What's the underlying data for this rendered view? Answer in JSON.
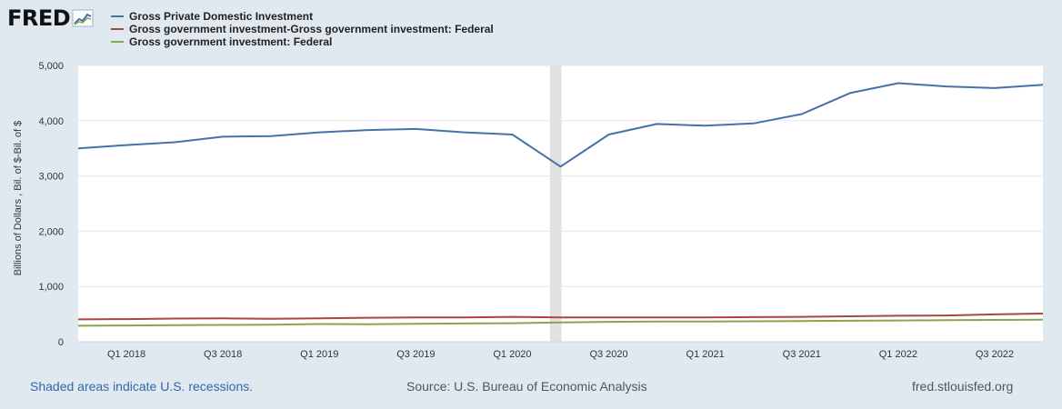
{
  "logo": {
    "text": "FRED"
  },
  "colors": {
    "background": "#e1e9f0",
    "plot": "#ffffff",
    "recession": "#e1e1e1"
  },
  "footer": {
    "recession_note": "Shaded areas indicate U.S. recessions.",
    "source": "Source: U.S. Bureau of Economic Analysis",
    "site": "fred.stlouisfed.org"
  },
  "chart_data": {
    "type": "line",
    "title": "",
    "xlabel": "",
    "ylabel": "Billions of Dollars , Bil. of $-Bil. of $",
    "ylim": [
      0,
      5000
    ],
    "yticks": [
      0,
      1000,
      2000,
      3000,
      4000,
      5000
    ],
    "ytick_labels": [
      "0",
      "1,000",
      "2,000",
      "3,000",
      "4,000",
      "5,000"
    ],
    "grid": true,
    "legend_position": "top-left",
    "x": [
      "Q4 2017",
      "Q1 2018",
      "Q2 2018",
      "Q3 2018",
      "Q4 2018",
      "Q1 2019",
      "Q2 2019",
      "Q3 2019",
      "Q4 2019",
      "Q1 2020",
      "Q2 2020",
      "Q3 2020",
      "Q4 2020",
      "Q1 2021",
      "Q2 2021",
      "Q3 2021",
      "Q4 2021",
      "Q1 2022",
      "Q2 2022",
      "Q3 2022",
      "Q4 2022"
    ],
    "xtick_labels": [
      "Q1 2018",
      "Q3 2018",
      "Q1 2019",
      "Q3 2019",
      "Q1 2020",
      "Q3 2020",
      "Q1 2021",
      "Q3 2021",
      "Q1 2022",
      "Q3 2022"
    ],
    "recession": {
      "start": "Q1 2020",
      "end": "Q2 2020"
    },
    "series": [
      {
        "name": "Gross Private Domestic Investment",
        "color": "#4572a7",
        "values": [
          3500,
          3560,
          3610,
          3710,
          3720,
          3790,
          3830,
          3850,
          3790,
          3750,
          3170,
          3750,
          3940,
          3910,
          3950,
          4120,
          4500,
          4680,
          4620,
          4590,
          4650
        ]
      },
      {
        "name": "Gross government investment-Gross government investment: Federal",
        "color": "#aa4643",
        "values": [
          405,
          410,
          420,
          422,
          415,
          425,
          435,
          440,
          440,
          450,
          440,
          440,
          440,
          440,
          445,
          450,
          460,
          470,
          475,
          495,
          510
        ]
      },
      {
        "name": "Gross government investment: Federal",
        "color": "#89a54e",
        "values": [
          290,
          295,
          300,
          305,
          310,
          320,
          315,
          325,
          330,
          335,
          350,
          360,
          365,
          365,
          370,
          375,
          380,
          385,
          390,
          395,
          400
        ]
      }
    ]
  }
}
